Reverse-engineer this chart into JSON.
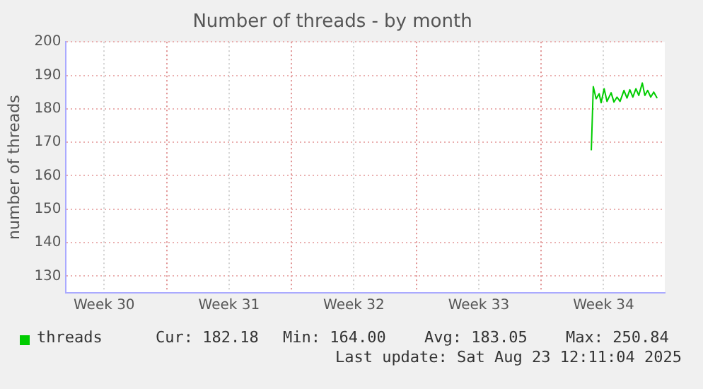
{
  "chart_data": {
    "type": "line",
    "title": "Number of threads - by month",
    "ylabel": "number of threads",
    "xlim": [
      "2025-07-21T07:55",
      "2025-08-23T22:19"
    ],
    "xticks": [
      {
        "value": "2025-07-23T12:00",
        "label": "Week 30"
      },
      {
        "value": "2025-07-27",
        "label": null
      },
      {
        "value": "2025-07-30T12:00",
        "label": "Week 31"
      },
      {
        "value": "2025-08-03",
        "label": null
      },
      {
        "value": "2025-08-06T12:00",
        "label": "Week 32"
      },
      {
        "value": "2025-08-10",
        "label": null
      },
      {
        "value": "2025-08-13T12:00",
        "label": "Week 33"
      },
      {
        "value": "2025-08-17",
        "label": null
      },
      {
        "value": "2025-08-20T12:00",
        "label": "Week 34"
      }
    ],
    "ylim": [
      125,
      200
    ],
    "yticks": [
      130,
      140,
      150,
      160,
      170,
      180,
      190,
      200
    ],
    "x": [
      "2025-08-19T19:26",
      "2025-08-19T22:05",
      "2025-08-20T01:55",
      "2025-08-20T06:00",
      "2025-08-20T08:38",
      "2025-08-20T12:43",
      "2025-08-20T16:34",
      "2025-08-20T22:05",
      "2025-08-21T01:55",
      "2025-08-21T06:00",
      "2025-08-21T10:05",
      "2025-08-21T15:22",
      "2025-08-21T19:26",
      "2025-08-21T23:17",
      "2025-08-22T03:22",
      "2025-08-22T07:26",
      "2025-08-22T11:17",
      "2025-08-22T16:05",
      "2025-08-22T19:26",
      "2025-08-22T23:17",
      "2025-08-23T03:22",
      "2025-08-23T07:26",
      "2025-08-23T12:00"
    ],
    "series": [
      {
        "name": "threads",
        "color": "#00cc00",
        "values": [
          167.6,
          186.6,
          183,
          184.5,
          181.8,
          186,
          182.2,
          184.8,
          182,
          183.5,
          182.2,
          185.5,
          183.2,
          185.7,
          183.5,
          186,
          184,
          187.7,
          184,
          185.5,
          183.5,
          185,
          183.2
        ]
      }
    ],
    "grid": true,
    "legend": "bottom",
    "marker": "none",
    "line_style": "solid",
    "annotations": [
      "Cur: 182.18",
      "Min: 164.00",
      "Avg: 183.05",
      "Max: 250.84",
      "Last update: Sat Aug 23 12:11:04 2025"
    ]
  }
}
